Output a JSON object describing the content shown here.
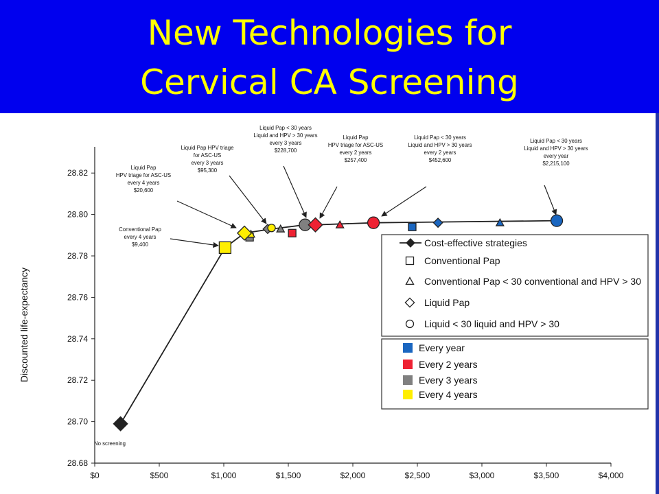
{
  "header": {
    "title_line1": "New Technologies for",
    "title_line2": "Cervical CA Screening"
  },
  "chart_data": {
    "type": "scatter",
    "ylabel": "Discounted life-expectancy",
    "xlabel": "",
    "xlim": [
      0,
      4000
    ],
    "ylim": [
      28.68,
      28.83
    ],
    "x_ticks": [
      0,
      500,
      1000,
      1500,
      2000,
      2500,
      3000,
      3500,
      4000
    ],
    "x_tick_labels": [
      "$0",
      "$500",
      "$1,000",
      "$1,500",
      "$2,000",
      "$2,500",
      "$3,000",
      "$3,500",
      "$4,000"
    ],
    "y_ticks": [
      28.68,
      28.7,
      28.72,
      28.74,
      28.76,
      28.78,
      28.8,
      28.82
    ],
    "y_tick_labels": [
      "28.68",
      "28.70",
      "28.72",
      "28.74",
      "28.76",
      "28.78",
      "28.80",
      "28.82"
    ],
    "grid": false,
    "frontier": {
      "name": "Cost-effective strategies",
      "points": [
        [
          200,
          28.699
        ],
        [
          1010,
          28.784
        ],
        [
          1160,
          28.791
        ],
        [
          1370,
          28.793
        ],
        [
          1630,
          28.795
        ],
        [
          1710,
          28.795
        ],
        [
          2160,
          28.796
        ],
        [
          3580,
          28.797
        ]
      ]
    },
    "points": [
      {
        "x": 200,
        "y": 28.699,
        "shape": "diamond",
        "color": "#222222",
        "size": "large"
      },
      {
        "x": 1010,
        "y": 28.784,
        "shape": "square",
        "color": "#ffee00",
        "size": "large"
      },
      {
        "x": 1160,
        "y": 28.791,
        "shape": "diamond",
        "color": "#ffee00",
        "size": "large"
      },
      {
        "x": 1200,
        "y": 28.789,
        "shape": "square",
        "color": "#808080",
        "size": "small"
      },
      {
        "x": 1210,
        "y": 28.7905,
        "shape": "triangle",
        "color": "#ffee00",
        "size": "small"
      },
      {
        "x": 1340,
        "y": 28.793,
        "shape": "diamond",
        "color": "#808080",
        "size": "small"
      },
      {
        "x": 1370,
        "y": 28.7935,
        "shape": "circle",
        "color": "#ffee00",
        "size": "small"
      },
      {
        "x": 1440,
        "y": 28.793,
        "shape": "triangle",
        "color": "#808080",
        "size": "small"
      },
      {
        "x": 1530,
        "y": 28.791,
        "shape": "square",
        "color": "#ee2233",
        "size": "small"
      },
      {
        "x": 1630,
        "y": 28.795,
        "shape": "circle",
        "color": "#808080",
        "size": "large"
      },
      {
        "x": 1710,
        "y": 28.795,
        "shape": "diamond",
        "color": "#ee2233",
        "size": "large"
      },
      {
        "x": 1900,
        "y": 28.795,
        "shape": "triangle",
        "color": "#ee2233",
        "size": "small"
      },
      {
        "x": 2160,
        "y": 28.796,
        "shape": "circle",
        "color": "#ee2233",
        "size": "large"
      },
      {
        "x": 2460,
        "y": 28.794,
        "shape": "square",
        "color": "#1a66c0",
        "size": "small"
      },
      {
        "x": 2660,
        "y": 28.796,
        "shape": "diamond",
        "color": "#1a66c0",
        "size": "small"
      },
      {
        "x": 3140,
        "y": 28.796,
        "shape": "triangle",
        "color": "#1a66c0",
        "size": "small"
      },
      {
        "x": 3580,
        "y": 28.797,
        "shape": "circle",
        "color": "#1a66c0",
        "size": "large"
      }
    ],
    "annotations": [
      {
        "lines": [
          "No screening"
        ]
      },
      {
        "lines": [
          "Conventional Pap",
          "every 4 years",
          "$9,400"
        ]
      },
      {
        "lines": [
          "Liquid Pap",
          "HPV triage for ASC-US",
          "every 4 years",
          "$20,600"
        ]
      },
      {
        "lines": [
          "Liquid Pap HPV triage",
          "for ASC-US",
          "every 3 years",
          "$95,300"
        ]
      },
      {
        "lines": [
          "Liquid Pap < 30 years",
          "Liquid and HPV > 30 years",
          "every 3 years",
          "$228,700"
        ]
      },
      {
        "lines": [
          "Liquid Pap",
          "HPV triage for ASC-US",
          "every 2 years",
          "$257,400"
        ]
      },
      {
        "lines": [
          "Liquid Pap < 30 years",
          "Liquid and HPV > 30 years",
          "every 2 years",
          "$452,600"
        ]
      },
      {
        "lines": [
          "Liquid Pap < 30 years",
          "Liquid and HPV > 30 years",
          "every year",
          "$2,215,100"
        ]
      }
    ],
    "legend_shapes": [
      {
        "label": "Cost-effective strategies",
        "shape": "line-diamond"
      },
      {
        "label": "Conventional Pap",
        "shape": "square"
      },
      {
        "label": "Conventional Pap < 30 conventional and HPV > 30",
        "shape": "triangle"
      },
      {
        "label": "Liquid Pap",
        "shape": "diamond"
      },
      {
        "label": "Liquid < 30 liquid and HPV > 30",
        "shape": "circle"
      }
    ],
    "legend_colors": [
      {
        "label": "Every year",
        "color": "#1a66c0"
      },
      {
        "label": "Every 2 years",
        "color": "#ee2233"
      },
      {
        "label": "Every 3 years",
        "color": "#808080"
      },
      {
        "label": "Every 4 years",
        "color": "#ffee00"
      }
    ]
  }
}
